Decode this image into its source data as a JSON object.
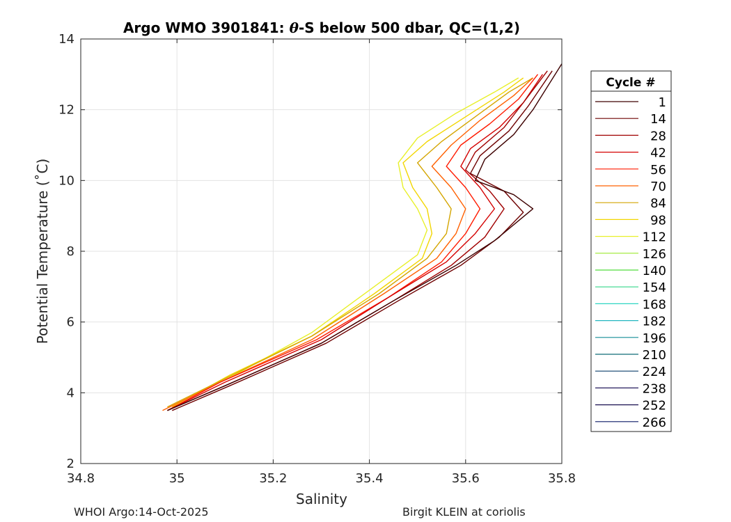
{
  "chart_data": {
    "type": "line",
    "title_prefix": "Argo WMO 3901841: ",
    "title_theta": "θ",
    "title_suffix": "-S below 500 dbar,  QC=(1,2)",
    "xlabel": "Salinity",
    "ylabel": "Potential Temperature (˚C)",
    "xlim": [
      34.8,
      35.8
    ],
    "ylim": [
      2,
      14
    ],
    "xticks": [
      34.8,
      35,
      35.2,
      35.4,
      35.6,
      35.8
    ],
    "xtick_labels": [
      "34.8",
      "35",
      "35.2",
      "35.4",
      "35.6",
      "35.8"
    ],
    "yticks": [
      2,
      4,
      6,
      8,
      10,
      12,
      14
    ],
    "ytick_labels": [
      "2",
      "4",
      "6",
      "8",
      "10",
      "12",
      "14"
    ],
    "grid": true,
    "legend_title": "Cycle #",
    "legend_position": "right-outside",
    "legend": [
      {
        "label": "1",
        "color": "#3d0000"
      },
      {
        "label": "14",
        "color": "#6e0000"
      },
      {
        "label": "28",
        "color": "#a00000"
      },
      {
        "label": "42",
        "color": "#d40000"
      },
      {
        "label": "56",
        "color": "#ff1a00"
      },
      {
        "label": "70",
        "color": "#ff6000"
      },
      {
        "label": "84",
        "color": "#d4a500"
      },
      {
        "label": "98",
        "color": "#f2d600"
      },
      {
        "label": "112",
        "color": "#e8f02a"
      },
      {
        "label": "126",
        "color": "#9be82e"
      },
      {
        "label": "140",
        "color": "#4fdc3a"
      },
      {
        "label": "154",
        "color": "#34d68a"
      },
      {
        "label": "168",
        "color": "#2ed6c2"
      },
      {
        "label": "182",
        "color": "#22b6c0"
      },
      {
        "label": "196",
        "color": "#148e96"
      },
      {
        "label": "210",
        "color": "#0e6a78"
      },
      {
        "label": "224",
        "color": "#0b3f6a"
      },
      {
        "label": "238",
        "color": "#241a5e"
      },
      {
        "label": "252",
        "color": "#1a1050"
      },
      {
        "label": "266",
        "color": "#0b1a66"
      }
    ],
    "series": [
      {
        "name": "1",
        "color": "#3d0000",
        "x": [
          34.98,
          35.1,
          35.3,
          35.45,
          35.58,
          35.66,
          35.74,
          35.7,
          35.62,
          35.64,
          35.7,
          35.74,
          35.8
        ],
        "y": [
          3.5,
          4.2,
          5.4,
          6.6,
          7.6,
          8.3,
          9.2,
          9.6,
          10.0,
          10.6,
          11.3,
          12.0,
          13.3
        ]
      },
      {
        "name": "14",
        "color": "#6e0000",
        "x": [
          34.99,
          35.11,
          35.31,
          35.46,
          35.59,
          35.67,
          35.72,
          35.68,
          35.61,
          35.63,
          35.69,
          35.73,
          35.78
        ],
        "y": [
          3.5,
          4.2,
          5.4,
          6.6,
          7.6,
          8.4,
          9.1,
          9.7,
          10.2,
          10.7,
          11.4,
          12.1,
          13.1
        ]
      },
      {
        "name": "28",
        "color": "#a00000",
        "x": [
          34.98,
          35.1,
          35.3,
          35.45,
          35.57,
          35.64,
          35.68,
          35.65,
          35.6,
          35.62,
          35.68,
          35.72,
          35.77
        ],
        "y": [
          3.5,
          4.2,
          5.4,
          6.6,
          7.6,
          8.4,
          9.2,
          9.7,
          10.3,
          10.8,
          11.5,
          12.2,
          13.1
        ]
      },
      {
        "name": "42",
        "color": "#d40000",
        "x": [
          34.98,
          35.1,
          35.3,
          35.44,
          35.56,
          35.62,
          35.66,
          35.63,
          35.59,
          35.61,
          35.67,
          35.72,
          35.76
        ],
        "y": [
          3.5,
          4.3,
          5.5,
          6.7,
          7.7,
          8.5,
          9.2,
          9.8,
          10.4,
          10.9,
          11.5,
          12.2,
          13.0
        ]
      },
      {
        "name": "56",
        "color": "#ff1a00",
        "x": [
          34.98,
          35.09,
          35.29,
          35.44,
          35.55,
          35.6,
          35.63,
          35.6,
          35.56,
          35.59,
          35.65,
          35.71,
          35.75
        ],
        "y": [
          3.5,
          4.3,
          5.5,
          6.7,
          7.7,
          8.5,
          9.2,
          9.8,
          10.4,
          11.0,
          11.6,
          12.3,
          13.0
        ]
      },
      {
        "name": "70",
        "color": "#ff6000",
        "x": [
          34.97,
          35.09,
          35.28,
          35.43,
          35.54,
          35.58,
          35.6,
          35.57,
          35.53,
          35.57,
          35.63,
          35.7,
          35.74
        ],
        "y": [
          3.5,
          4.3,
          5.5,
          6.8,
          7.8,
          8.5,
          9.2,
          9.8,
          10.4,
          11.0,
          11.7,
          12.4,
          12.9
        ]
      },
      {
        "name": "84",
        "color": "#d4a500",
        "x": [
          34.98,
          35.1,
          35.28,
          35.42,
          35.52,
          35.56,
          35.57,
          35.54,
          35.5,
          35.55,
          35.62,
          35.69,
          35.74
        ],
        "y": [
          3.6,
          4.4,
          5.6,
          6.8,
          7.8,
          8.5,
          9.2,
          9.8,
          10.5,
          11.1,
          11.8,
          12.5,
          12.9
        ]
      },
      {
        "name": "98",
        "color": "#f2d600",
        "x": [
          34.99,
          35.11,
          35.28,
          35.41,
          35.51,
          35.53,
          35.52,
          35.49,
          35.47,
          35.52,
          35.6,
          35.68,
          35.72
        ],
        "y": [
          3.6,
          4.5,
          5.6,
          6.8,
          7.8,
          8.5,
          9.2,
          9.8,
          10.5,
          11.1,
          11.8,
          12.5,
          12.9
        ]
      },
      {
        "name": "112",
        "color": "#e8f02a",
        "x": [
          35.0,
          35.12,
          35.28,
          35.4,
          35.5,
          35.52,
          35.5,
          35.47,
          35.46,
          35.5,
          35.58,
          35.66,
          35.71
        ],
        "y": [
          3.7,
          4.5,
          5.7,
          6.9,
          7.9,
          8.6,
          9.2,
          9.8,
          10.5,
          11.2,
          11.9,
          12.5,
          12.9
        ]
      }
    ]
  },
  "footer": {
    "left": "WHOI Argo:14-Oct-2025",
    "right": "Birgit KLEIN at coriolis"
  }
}
